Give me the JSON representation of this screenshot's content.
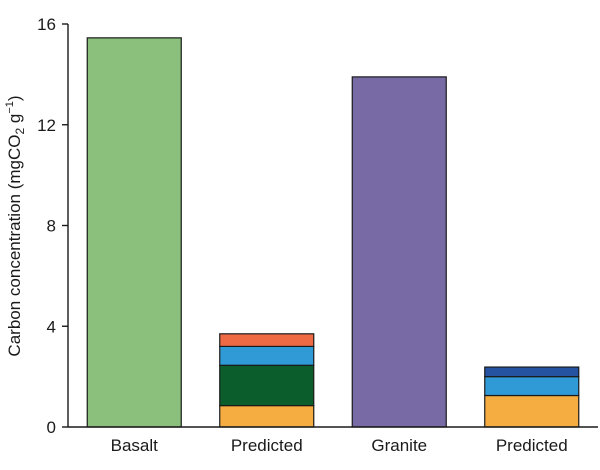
{
  "chart_data": {
    "type": "bar",
    "stacked": true,
    "categories": [
      "Basalt",
      "Predicted",
      "Granite",
      "Predicted"
    ],
    "ylabel": {
      "text": "Carbon concentration (mgCO",
      "sub": "2",
      "mid": " g",
      "sup": "−1",
      "end": ")"
    },
    "ylim": [
      0,
      16
    ],
    "yticks": [
      0,
      4,
      8,
      12,
      16
    ],
    "grid": false,
    "legend": "none",
    "bars": [
      {
        "category_index": 0,
        "segments": [
          {
            "value": 15.45,
            "color": "#8abf7c"
          }
        ]
      },
      {
        "category_index": 1,
        "segments": [
          {
            "value": 0.85,
            "color": "#f5ad42"
          },
          {
            "value": 1.6,
            "color": "#0b5e2c"
          },
          {
            "value": 0.75,
            "color": "#2f9ad6"
          },
          {
            "value": 0.5,
            "color": "#ee6a44"
          }
        ]
      },
      {
        "category_index": 2,
        "segments": [
          {
            "value": 13.9,
            "color": "#786ba5"
          }
        ]
      },
      {
        "category_index": 3,
        "segments": [
          {
            "value": 1.25,
            "color": "#f5ad42"
          },
          {
            "value": 0.75,
            "color": "#2f9ad6"
          },
          {
            "value": 0.38,
            "color": "#2553a2"
          }
        ]
      }
    ]
  }
}
